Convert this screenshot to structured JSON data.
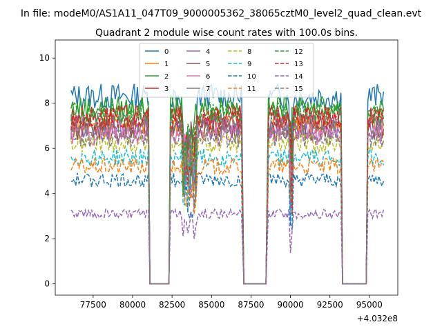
{
  "chart_data": {
    "type": "line",
    "suptitle": "In file: modeM0/AS1A11_047T09_9000005362_38065cztM0_level2_quad_clean.evt",
    "title": "Quadrant 2 module wise count rates with 100.0s bins.",
    "xlabel": "",
    "ylabel": "",
    "x_offset_label": "+4.032e8",
    "xlim": [
      75100,
      96800
    ],
    "ylim": [
      -0.5,
      10.8
    ],
    "x_ticks": [
      77500,
      80000,
      82500,
      85000,
      87500,
      90000,
      92500,
      95000
    ],
    "y_ticks": [
      0,
      2,
      4,
      6,
      8,
      10
    ],
    "x_tick_labels": [
      "77500",
      "80000",
      "82500",
      "85000",
      "87500",
      "90000",
      "92500",
      "95000"
    ],
    "y_tick_labels": [
      "0",
      "2",
      "4",
      "6",
      "8",
      "10"
    ],
    "legend_position": "upper-center",
    "segments": [
      [
        76100,
        81000
      ],
      [
        81100,
        82300
      ],
      [
        82400,
        86950
      ],
      [
        87050,
        88500
      ],
      [
        88600,
        93200
      ],
      [
        93300,
        94800
      ],
      [
        94900,
        95900
      ]
    ],
    "gap_value": 0,
    "series": [
      {
        "name": "0",
        "color": "#1f77b4",
        "style": "solid",
        "level": 8.3
      },
      {
        "name": "1",
        "color": "#ff7f0e",
        "style": "solid",
        "level": 7.0
      },
      {
        "name": "2",
        "color": "#2ca02c",
        "style": "solid",
        "level": 7.8
      },
      {
        "name": "3",
        "color": "#d62728",
        "style": "solid",
        "level": 7.4
      },
      {
        "name": "4",
        "color": "#9467bd",
        "style": "solid",
        "level": 6.9
      },
      {
        "name": "5",
        "color": "#8c564b",
        "style": "solid",
        "level": 6.8
      },
      {
        "name": "6",
        "color": "#e377c2",
        "style": "solid",
        "level": 6.6
      },
      {
        "name": "7",
        "color": "#7f7f7f",
        "style": "solid",
        "level": 7.2
      },
      {
        "name": "8",
        "color": "#bcbd22",
        "style": "dashed",
        "level": 6.2
      },
      {
        "name": "9",
        "color": "#17becf",
        "style": "dashed",
        "level": 5.6
      },
      {
        "name": "10",
        "color": "#1f77b4",
        "style": "dashed",
        "level": 4.6
      },
      {
        "name": "11",
        "color": "#ff7f0e",
        "style": "dashed",
        "level": 5.2
      },
      {
        "name": "12",
        "color": "#2ca02c",
        "style": "dashed",
        "level": 7.6
      },
      {
        "name": "13",
        "color": "#d62728",
        "style": "dashed",
        "level": 7.3
      },
      {
        "name": "14",
        "color": "#9467bd",
        "style": "dashed",
        "level": 3.1
      },
      {
        "name": "15",
        "color": "#7f7f7f",
        "style": "dashed",
        "level": 6.5
      }
    ]
  }
}
